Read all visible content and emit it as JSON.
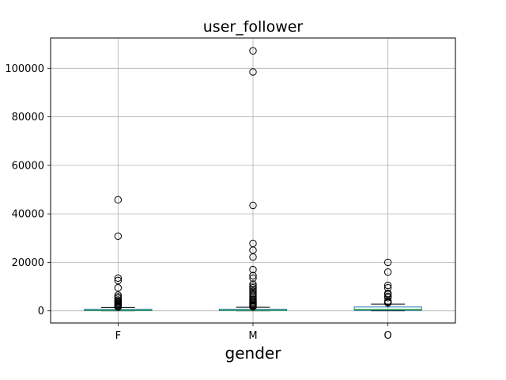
{
  "chart_data": {
    "type": "box",
    "title": "user_follower",
    "xlabel": "gender",
    "ylabel": "",
    "categories": [
      "F",
      "M",
      "O"
    ],
    "ylim": [
      -5000,
      112500
    ],
    "yticks": [
      0,
      20000,
      40000,
      60000,
      80000,
      100000
    ],
    "ytick_labels": [
      "0",
      "20000",
      "40000",
      "60000",
      "80000",
      "100000"
    ],
    "grid": true,
    "box_color": "#1f77b4",
    "median_color": "#2ca02c",
    "boxes": [
      {
        "category": "F",
        "q1": 80,
        "median": 250,
        "q3": 650,
        "whisker_low": 0,
        "whisker_high": 1400,
        "fliers": [
          45800,
          30800,
          13500,
          12500,
          9500,
          6500,
          5800,
          5200,
          4500,
          4000,
          3600,
          3200,
          2800,
          2400,
          2100,
          1800,
          1600
        ]
      },
      {
        "category": "M",
        "q1": 80,
        "median": 250,
        "q3": 700,
        "whisker_low": 0,
        "whisker_high": 1500,
        "fliers": [
          107200,
          98500,
          43500,
          27800,
          25000,
          22200,
          17000,
          14500,
          13500,
          11000,
          10200,
          9500,
          8800,
          8000,
          7200,
          6600,
          6000,
          5400,
          4800,
          4300,
          3800,
          3300,
          2900,
          2500,
          2200,
          1900,
          1700
        ]
      },
      {
        "category": "O",
        "q1": 200,
        "median": 600,
        "q3": 1600,
        "whisker_low": 0,
        "whisker_high": 2800,
        "fliers": [
          20000,
          16000,
          10500,
          9500,
          7200,
          6800,
          6000,
          5500,
          4000,
          3700,
          3300
        ]
      }
    ]
  }
}
